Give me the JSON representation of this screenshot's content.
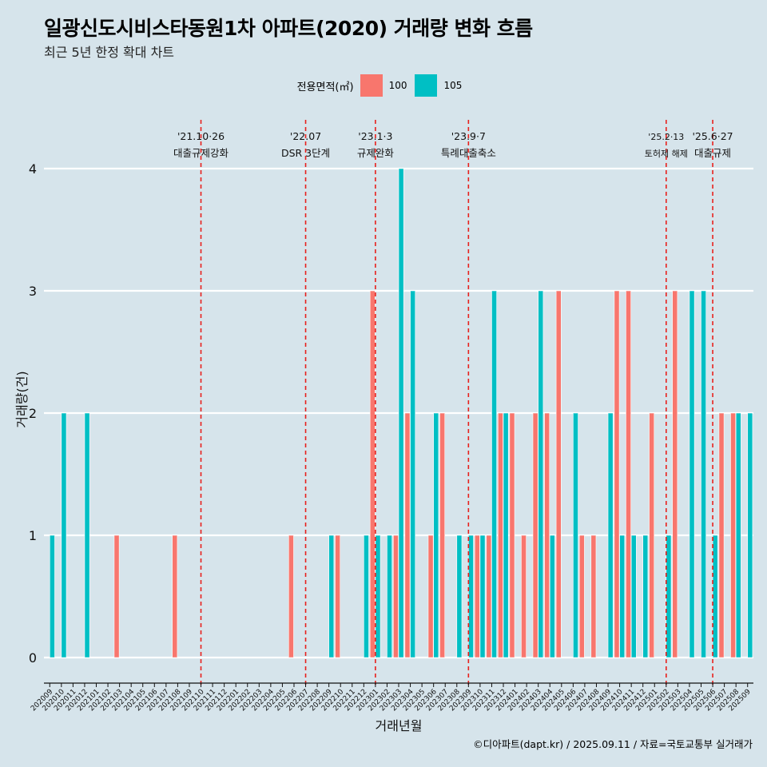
{
  "title": "일광신도시비스타동원1차 아파트(2020) 거래량 변화 흐름",
  "subtitle": "최근 5년 한정 확대 차트",
  "legend": {
    "title": "전용면적(㎡)",
    "items": [
      {
        "label": "100",
        "color": "#f8766d"
      },
      {
        "label": "105",
        "color": "#00bfc4"
      }
    ]
  },
  "caption": "©디아파트(dapt.kr) / 2025.09.11 / 자료=국토교통부 실거래가",
  "chart_data": {
    "type": "bar",
    "xlabel": "거래년월",
    "ylabel": "거래량(건)",
    "ylim": [
      0,
      4
    ],
    "yticks": [
      "0",
      "1",
      "2",
      "3",
      "4"
    ],
    "grid": true,
    "legend_position": "top",
    "categories": [
      "202009",
      "202010",
      "202011",
      "202012",
      "202101",
      "202102",
      "202103",
      "202104",
      "202105",
      "202106",
      "202107",
      "202108",
      "202109",
      "202110",
      "202111",
      "202112",
      "202201",
      "202202",
      "202203",
      "202204",
      "202205",
      "202206",
      "202207",
      "202208",
      "202209",
      "202210",
      "202211",
      "202212",
      "202301",
      "202302",
      "202303",
      "202304",
      "202305",
      "202306",
      "202307",
      "202308",
      "202309",
      "202310",
      "202311",
      "202312",
      "202401",
      "202402",
      "202403",
      "202404",
      "202405",
      "202406",
      "202407",
      "202408",
      "202409",
      "202410",
      "202411",
      "202412",
      "202501",
      "202502",
      "202503",
      "202504",
      "202505",
      "202506",
      "202507",
      "202508",
      "202509"
    ],
    "series": [
      {
        "name": "100",
        "color": "#f8766d",
        "values": [
          0,
          0,
          0,
          0,
          0,
          0,
          1,
          0,
          0,
          0,
          0,
          1,
          0,
          0,
          0,
          0,
          0,
          0,
          0,
          0,
          0,
          1,
          0,
          0,
          0,
          1,
          0,
          0,
          3,
          0,
          1,
          2,
          0,
          1,
          2,
          0,
          0,
          1,
          1,
          2,
          2,
          1,
          2,
          2,
          3,
          0,
          1,
          1,
          0,
          3,
          3,
          0,
          2,
          0,
          3,
          0,
          0,
          0,
          2,
          2,
          0
        ]
      },
      {
        "name": "105",
        "color": "#00bfc4",
        "values": [
          1,
          2,
          0,
          2,
          0,
          0,
          0,
          0,
          0,
          0,
          0,
          0,
          0,
          0,
          0,
          0,
          0,
          0,
          0,
          0,
          0,
          0,
          0,
          0,
          1,
          0,
          0,
          1,
          1,
          1,
          4,
          3,
          0,
          2,
          0,
          1,
          1,
          1,
          3,
          2,
          0,
          0,
          3,
          1,
          0,
          2,
          0,
          0,
          2,
          1,
          1,
          1,
          0,
          1,
          0,
          3,
          3,
          1,
          0,
          2,
          2
        ]
      }
    ],
    "events": [
      {
        "category": "202110",
        "date": "'21.10·26",
        "label": "대출규제강화"
      },
      {
        "category": "202207",
        "date": "'22.07",
        "label": "DSR 3단계"
      },
      {
        "category": "202301",
        "date": "'23.1·3",
        "label": "규제완화"
      },
      {
        "category": "202309",
        "date": "'23.9·7",
        "label": "특례대출축소"
      },
      {
        "category": "202502",
        "date": "'25.2·13",
        "label": "토허제 해제"
      },
      {
        "category": "202506",
        "date": "'25.6·27",
        "label": "대출규제"
      }
    ]
  }
}
